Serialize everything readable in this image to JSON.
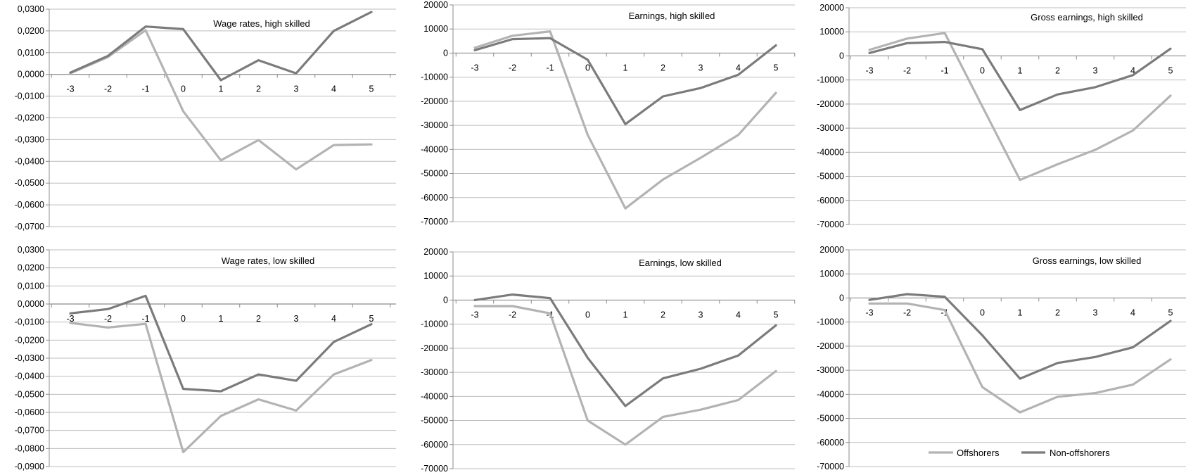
{
  "colors": {
    "offshorers": "#b3b3b3",
    "non_offshorers": "#7b7b7b",
    "grid": "#bdbdbd",
    "axis": "#8c8c8c"
  },
  "legend": {
    "placement": "bottom-right panel",
    "entries": [
      "Offshorers",
      "Non-offshorers"
    ]
  },
  "chart_data": [
    {
      "type": "line",
      "title": "Wage rates, high skilled",
      "categories": [
        "-3",
        "-2",
        "-1",
        "0",
        "1",
        "2",
        "3",
        "4",
        "5"
      ],
      "yticks": [
        "0,0300",
        "0,0200",
        "0,0100",
        "0,0000",
        "-0,0100",
        "-0,0200",
        "-0,0300",
        "-0,0400",
        "-0,0500",
        "-0,0600",
        "-0,0700"
      ],
      "ylim": [
        -0.07,
        0.03
      ],
      "grid": true,
      "series": [
        {
          "name": "Offshorers",
          "values": [
            0.0005,
            0.008,
            0.0203,
            -0.017,
            -0.0395,
            -0.0302,
            -0.0437,
            -0.0325,
            -0.0322
          ]
        },
        {
          "name": "Non-offshorers",
          "values": [
            0.0008,
            0.0085,
            0.022,
            0.0208,
            -0.0027,
            0.0065,
            0.0005,
            0.02,
            0.0287
          ]
        }
      ]
    },
    {
      "type": "line",
      "title": "Earnings, high skilled",
      "categories": [
        "-3",
        "-2",
        "-1",
        "0",
        "1",
        "2",
        "3",
        "4",
        "5"
      ],
      "yticks": [
        "20000",
        "10000",
        "0",
        "-10000",
        "-20000",
        "-30000",
        "-40000",
        "-50000",
        "-60000",
        "-70000"
      ],
      "ylim": [
        -70000,
        20000
      ],
      "grid": true,
      "series": [
        {
          "name": "Offshorers",
          "values": [
            2200,
            7200,
            9000,
            -34000,
            -64500,
            -52500,
            -43500,
            -34000,
            -16500
          ]
        },
        {
          "name": "Non-offshorers",
          "values": [
            1200,
            5800,
            6200,
            -2800,
            -29500,
            -18000,
            -14500,
            -9000,
            3200
          ]
        }
      ]
    },
    {
      "type": "line",
      "title": "Gross earnings, high skilled",
      "categories": [
        "-3",
        "-2",
        "-1",
        "0",
        "1",
        "2",
        "3",
        "4",
        "5"
      ],
      "yticks": [
        "20000",
        "10000",
        "0",
        "-10000",
        "-20000",
        "-30000",
        "-40000",
        "-50000",
        "-60000",
        "-70000"
      ],
      "ylim": [
        -70000,
        20000
      ],
      "grid": true,
      "series": [
        {
          "name": "Offshorers",
          "values": [
            2500,
            7200,
            9500,
            -21000,
            -51500,
            -45000,
            -39000,
            -31000,
            -16500
          ]
        },
        {
          "name": "Non-offshorers",
          "values": [
            1200,
            5300,
            5800,
            2800,
            -22500,
            -16000,
            -13000,
            -8000,
            3000
          ]
        }
      ]
    },
    {
      "type": "line",
      "title": "Wage rates, low skilled",
      "categories": [
        "-3",
        "-2",
        "-1",
        "0",
        "1",
        "2",
        "3",
        "4",
        "5"
      ],
      "yticks": [
        "0,0300",
        "0,0200",
        "0,0100",
        "0,0000",
        "-0,0100",
        "-0,0200",
        "-0,0300",
        "-0,0400",
        "-0,0500",
        "-0,0600",
        "-0,0700",
        "-0,0800",
        "-0,0900"
      ],
      "ylim": [
        -0.09,
        0.03
      ],
      "grid": true,
      "series": [
        {
          "name": "Offshorers",
          "values": [
            -0.0105,
            -0.013,
            -0.011,
            -0.082,
            -0.062,
            -0.0528,
            -0.059,
            -0.039,
            -0.031
          ]
        },
        {
          "name": "Non-offshorers",
          "values": [
            -0.0052,
            -0.0028,
            0.0045,
            -0.047,
            -0.0483,
            -0.039,
            -0.0425,
            -0.021,
            -0.0112
          ]
        }
      ]
    },
    {
      "type": "line",
      "title": "Earnings, low skilled",
      "categories": [
        "-3",
        "-2",
        "-1",
        "0",
        "1",
        "2",
        "3",
        "4",
        "5"
      ],
      "yticks": [
        "20000",
        "10000",
        "0",
        "-10000",
        "-20000",
        "-30000",
        "-40000",
        "-50000",
        "-60000",
        "-70000"
      ],
      "ylim": [
        -70000,
        20000
      ],
      "grid": true,
      "series": [
        {
          "name": "Offshorers",
          "values": [
            -2500,
            -2500,
            -5500,
            -50000,
            -60000,
            -48500,
            -45500,
            -41500,
            -29500
          ]
        },
        {
          "name": "Non-offshorers",
          "values": [
            0,
            2300,
            800,
            -24000,
            -44000,
            -32500,
            -28500,
            -23000,
            -10500
          ]
        }
      ]
    },
    {
      "type": "line",
      "title": "Gross earnings, low skilled",
      "categories": [
        "-3",
        "-2",
        "-1",
        "0",
        "1",
        "2",
        "3",
        "4",
        "5"
      ],
      "yticks": [
        "20000",
        "10000",
        "0",
        "-10000",
        "-20000",
        "-30000",
        "-40000",
        "-50000",
        "-60000",
        "-70000"
      ],
      "ylim": [
        -70000,
        20000
      ],
      "grid": true,
      "series": [
        {
          "name": "Offshorers",
          "values": [
            -2300,
            -2300,
            -5000,
            -37000,
            -47500,
            -41000,
            -39500,
            -36000,
            -25500
          ]
        },
        {
          "name": "Non-offshorers",
          "values": [
            -800,
            1600,
            500,
            -15500,
            -33500,
            -27000,
            -24500,
            -20500,
            -9500
          ]
        }
      ]
    }
  ]
}
